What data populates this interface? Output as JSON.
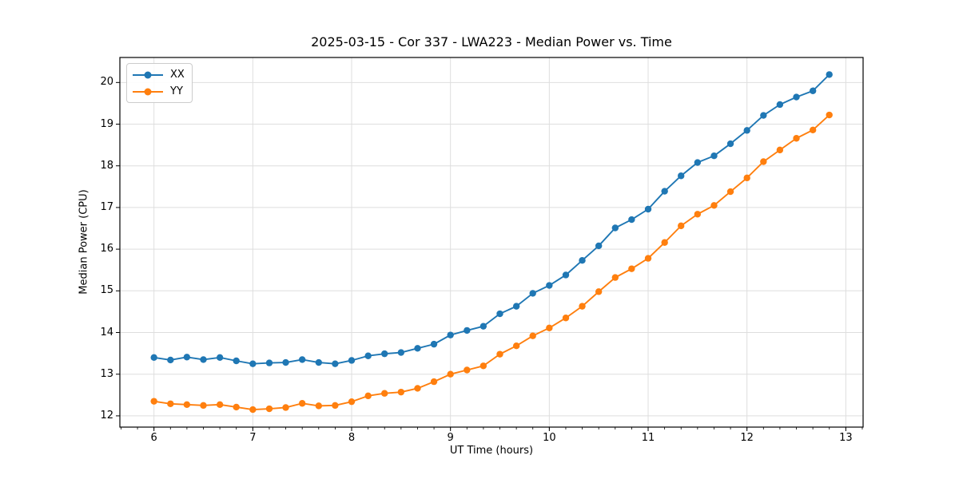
{
  "chart_data": {
    "type": "line",
    "title": "2025-03-15 - Cor 337 - LWA223 - Median Power vs. Time",
    "xlabel": "UT Time (hours)",
    "ylabel": "Median Power (CPU)",
    "xlim": [
      5.655,
      13.175
    ],
    "ylim": [
      11.73,
      20.6
    ],
    "x_ticks": [
      6,
      7,
      8,
      9,
      10,
      11,
      12,
      13
    ],
    "y_ticks": [
      12,
      13,
      14,
      15,
      16,
      17,
      18,
      19,
      20
    ],
    "x_minor_tick_step": 0.1666667,
    "grid": "major",
    "grid_color": "#dedede",
    "legend_position": "upper-left",
    "x": [
      6.0,
      6.167,
      6.333,
      6.5,
      6.667,
      6.833,
      7.0,
      7.167,
      7.333,
      7.5,
      7.667,
      7.833,
      8.0,
      8.167,
      8.333,
      8.5,
      8.667,
      8.833,
      9.0,
      9.167,
      9.333,
      9.5,
      9.667,
      9.833,
      10.0,
      10.167,
      10.333,
      10.5,
      10.667,
      10.833,
      11.0,
      11.167,
      11.333,
      11.5,
      11.667,
      11.833,
      12.0,
      12.167,
      12.333,
      12.5,
      12.667,
      12.833
    ],
    "series": [
      {
        "name": "XX",
        "color": "#1f77b4",
        "values": [
          13.4,
          13.34,
          13.41,
          13.35,
          13.4,
          13.32,
          13.25,
          13.27,
          13.28,
          13.35,
          13.28,
          13.25,
          13.33,
          13.44,
          13.49,
          13.52,
          13.62,
          13.72,
          13.94,
          14.05,
          14.15,
          14.45,
          14.63,
          14.94,
          15.13,
          15.38,
          15.73,
          16.08,
          16.51,
          16.71,
          16.96,
          17.39,
          17.76,
          18.08,
          18.24,
          18.53,
          18.85,
          19.21,
          19.47,
          19.65,
          19.8,
          20.19
        ]
      },
      {
        "name": "YY",
        "color": "#ff7f0e",
        "values": [
          12.35,
          12.29,
          12.27,
          12.25,
          12.27,
          12.21,
          12.15,
          12.17,
          12.2,
          12.3,
          12.24,
          12.25,
          12.34,
          12.48,
          12.54,
          12.57,
          12.66,
          12.82,
          13.0,
          13.1,
          13.2,
          13.48,
          13.68,
          13.92,
          14.11,
          14.35,
          14.63,
          14.98,
          15.32,
          15.53,
          15.78,
          16.16,
          16.56,
          16.84,
          17.05,
          17.38,
          17.71,
          18.1,
          18.38,
          18.66,
          18.86,
          19.22
        ]
      }
    ]
  },
  "style": {
    "spine_color": "#000000",
    "tick_color": "#000000",
    "marker_radius": 4.2,
    "line_width": 1.9
  }
}
